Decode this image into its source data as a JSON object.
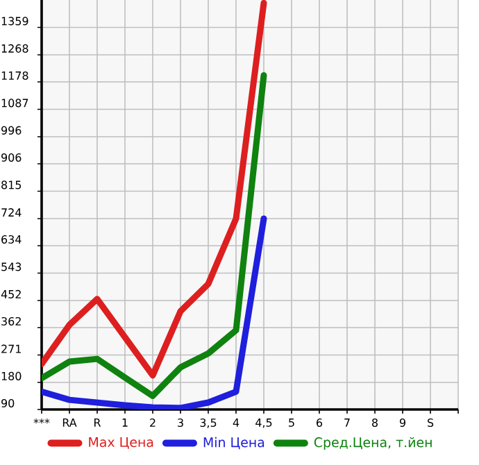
{
  "chart_data": {
    "type": "line",
    "categories": [
      "***",
      "RA",
      "R",
      "1",
      "2",
      "3",
      "3,5",
      "4",
      "4,5",
      "5",
      "6",
      "7",
      "8",
      "9",
      "S"
    ],
    "series": [
      {
        "name": "Max Цена",
        "color": "#dd1f1f",
        "values": [
          241,
          371,
          457,
          330,
          203,
          416,
          507,
          724,
          1440,
          null,
          null,
          null,
          null,
          null,
          null
        ]
      },
      {
        "name": "Min Цена",
        "color": "#1f1fdd",
        "values": [
          149,
          122,
          113,
          104,
          97,
          95,
          113,
          149,
          724,
          null,
          null,
          null,
          null,
          null,
          null
        ]
      },
      {
        "name": "Сред.Цена, т.йен",
        "color": "#0f820f",
        "values": [
          194,
          249,
          258,
          196,
          135,
          230,
          276,
          353,
          1200,
          null,
          null,
          null,
          null,
          null,
          null
        ]
      }
    ],
    "ylim": [
      90,
      1450
    ],
    "yticks": [
      90,
      180,
      271,
      362,
      452,
      543,
      634,
      724,
      815,
      906,
      996,
      1087,
      1178,
      1268,
      1359
    ],
    "grid": true,
    "legend": "bottom",
    "marker": "none",
    "line_style": "solid"
  }
}
